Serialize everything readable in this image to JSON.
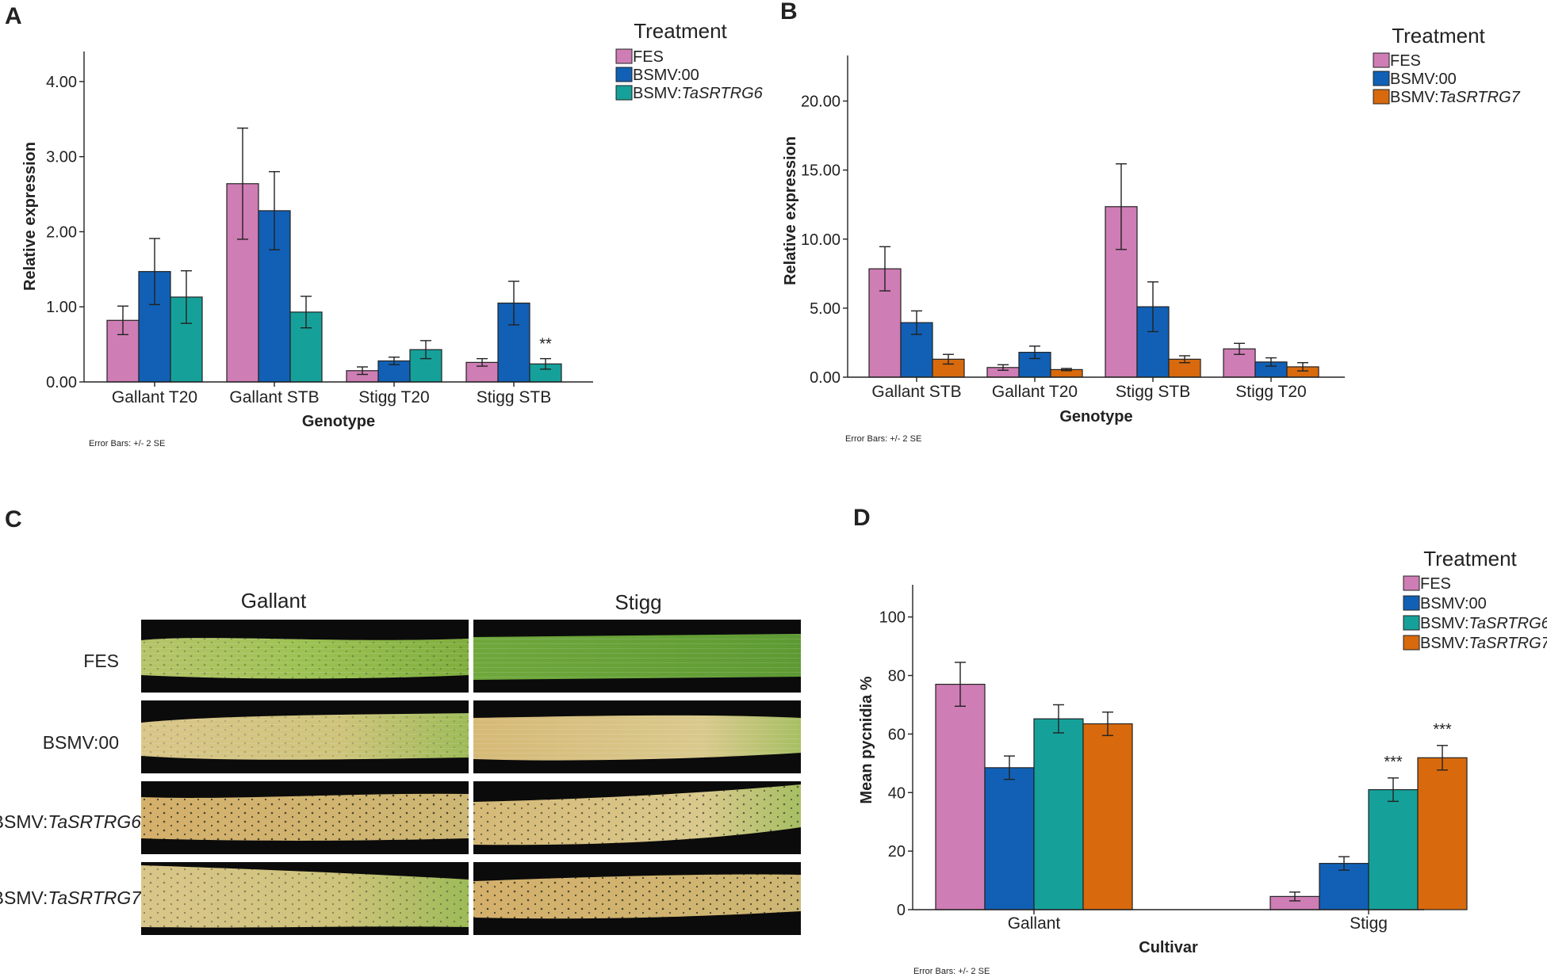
{
  "colors": {
    "FES": "#cf7db5",
    "BSMV:00": "#1160b5",
    "BSMV:TaSRTRG6": "#15a19a",
    "BSMV:TaSRTRG7": "#d86a0d"
  },
  "chart_data": [
    {
      "panel": "A",
      "type": "bar",
      "ylabel": "Relative expression",
      "xlabel": "Genotype",
      "ylim": [
        0,
        4.4
      ],
      "yticks": [
        "0.00",
        "1.00",
        "2.00",
        "3.00",
        "4.00"
      ],
      "ytick_values": [
        0,
        1,
        2,
        3,
        4
      ],
      "legend_title": "Treatment",
      "legend_position": "top-right",
      "categories": [
        "Gallant T20",
        "Gallant STB",
        "Stigg T20",
        "Stigg STB"
      ],
      "series": [
        {
          "name": "FES",
          "prefix": "FES",
          "suffix": "",
          "values": [
            0.82,
            2.64,
            0.15,
            0.26
          ],
          "err": [
            0.19,
            0.74,
            0.05,
            0.05
          ]
        },
        {
          "name": "BSMV:00",
          "prefix": "BSMV:00",
          "suffix": "",
          "values": [
            1.47,
            2.28,
            0.28,
            1.05
          ],
          "err": [
            0.44,
            0.52,
            0.05,
            0.29
          ]
        },
        {
          "name": "BSMV:TaSRTRG6",
          "prefix": "BSMV:",
          "suffix": "TaSRTRG6",
          "values": [
            1.13,
            0.93,
            0.43,
            0.24
          ],
          "err": [
            0.35,
            0.21,
            0.12,
            0.07
          ]
        }
      ],
      "annotations": [
        {
          "series": 2,
          "category": 3,
          "text": "**"
        }
      ],
      "footnote": "Error Bars: +/- 2 SE"
    },
    {
      "panel": "B",
      "type": "bar",
      "ylabel": "Relative expression",
      "xlabel": "Genotype",
      "ylim": [
        0,
        23.3
      ],
      "yticks": [
        "0.00",
        "5.00",
        "10.00",
        "15.00",
        "20.00"
      ],
      "ytick_values": [
        0,
        5,
        10,
        15,
        20
      ],
      "legend_title": "Treatment",
      "legend_position": "top-right",
      "categories": [
        "Gallant STB",
        "Gallant T20",
        "Stigg STB",
        "Stigg T20"
      ],
      "series": [
        {
          "name": "FES",
          "prefix": "FES",
          "suffix": "",
          "values": [
            7.85,
            0.7,
            12.35,
            2.05
          ],
          "err": [
            1.6,
            0.2,
            3.1,
            0.4
          ]
        },
        {
          "name": "BSMV:00",
          "prefix": "BSMV:00",
          "suffix": "",
          "values": [
            3.95,
            1.8,
            5.1,
            1.1
          ],
          "err": [
            0.85,
            0.45,
            1.8,
            0.3
          ]
        },
        {
          "name": "BSMV:TaSRTRG7",
          "prefix": "BSMV:",
          "suffix": "TaSRTRG7",
          "values": [
            1.3,
            0.55,
            1.3,
            0.75
          ],
          "err": [
            0.35,
            0.08,
            0.25,
            0.3
          ]
        }
      ],
      "annotations": [],
      "footnote": "Error Bars: +/- 2 SE"
    },
    {
      "panel": "D",
      "type": "bar",
      "ylabel": "Mean pycnidia %",
      "xlabel": "Cultivar",
      "ylim": [
        0,
        111
      ],
      "yticks": [
        "0",
        "20",
        "40",
        "60",
        "80",
        "100"
      ],
      "ytick_values": [
        0,
        20,
        40,
        60,
        80,
        100
      ],
      "legend_title": "Treatment",
      "legend_position": "top-right",
      "categories": [
        "Gallant",
        "Stigg"
      ],
      "series": [
        {
          "name": "FES",
          "prefix": "FES",
          "suffix": "",
          "values": [
            77,
            4.5
          ],
          "err": [
            7.5,
            1.5
          ]
        },
        {
          "name": "BSMV:00",
          "prefix": "BSMV:00",
          "suffix": "",
          "values": [
            48.5,
            15.8
          ],
          "err": [
            4,
            2.3
          ]
        },
        {
          "name": "BSMV:TaSRTRG6",
          "prefix": "BSMV:",
          "suffix": "TaSRTRG6",
          "values": [
            65.2,
            41
          ],
          "err": [
            4.8,
            4
          ]
        },
        {
          "name": "BSMV:TaSRTRG7",
          "prefix": "BSMV:",
          "suffix": "TaSRTRG7",
          "values": [
            63.5,
            51.9
          ],
          "err": [
            4,
            4.2
          ]
        }
      ],
      "annotations": [
        {
          "series": 2,
          "category": 1,
          "text": "***"
        },
        {
          "series": 3,
          "category": 1,
          "text": "***"
        }
      ],
      "footnote": "Error Bars: +/- 2 SE"
    }
  ],
  "panel_c": {
    "label": "C",
    "columns": [
      "Gallant",
      "Stigg"
    ],
    "rows": [
      {
        "prefix": "FES",
        "suffix": ""
      },
      {
        "prefix": "BSMV:00",
        "suffix": ""
      },
      {
        "prefix": "BSMV:",
        "suffix": "TaSRTRG6"
      },
      {
        "prefix": "BSMV:",
        "suffix": "TaSRTRG7"
      }
    ]
  }
}
